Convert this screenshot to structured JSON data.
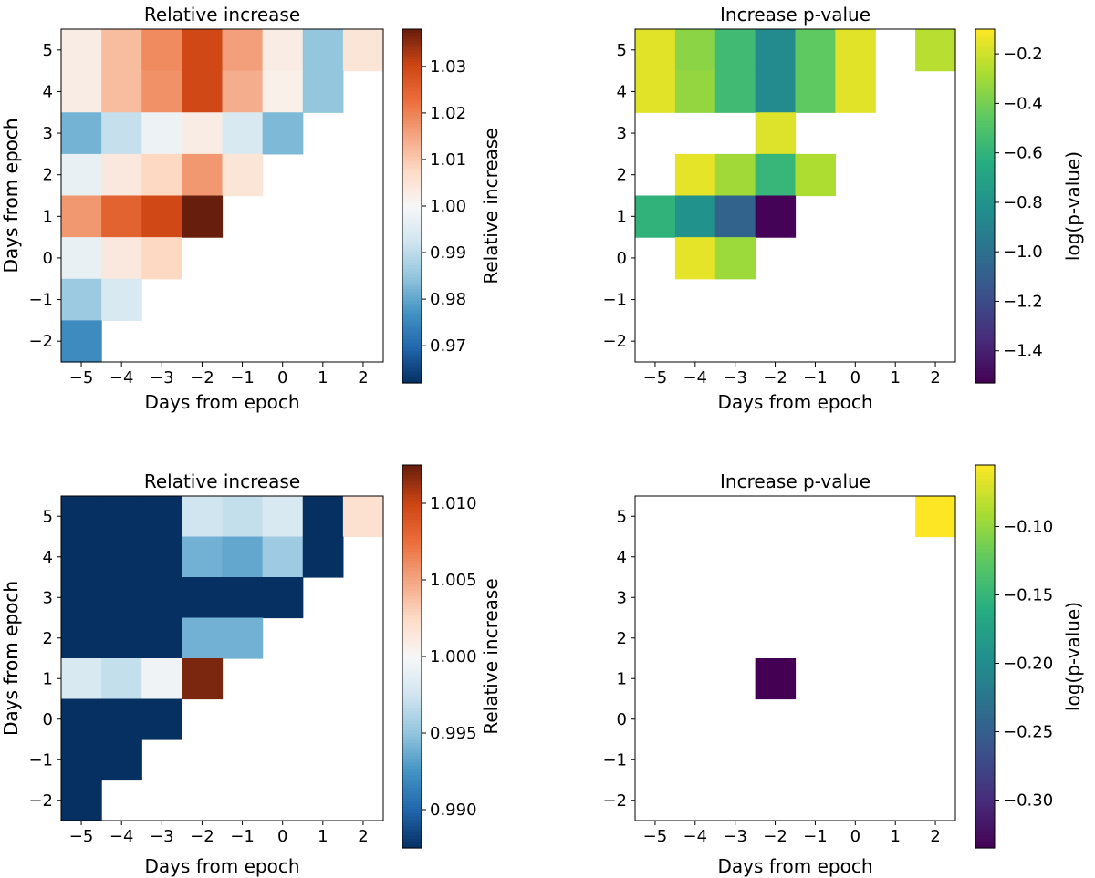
{
  "figure": {
    "description_none": ""
  },
  "chart_data": [
    {
      "type": "heatmap",
      "title": "Relative increase",
      "xlabel": "Days from epoch",
      "ylabel": "Days from epoch",
      "x_categories": [
        -5,
        -4,
        -3,
        -2,
        -1,
        0,
        1,
        2
      ],
      "y_categories": [
        5,
        4,
        3,
        2,
        1,
        0,
        -1,
        -2
      ],
      "values": [
        [
          1.003,
          1.012,
          1.019,
          1.03,
          1.016,
          1.003,
          0.985,
          1.005
        ],
        [
          1.003,
          1.012,
          1.018,
          1.03,
          1.014,
          1.002,
          0.985,
          null
        ],
        [
          0.982,
          0.991,
          0.998,
          1.003,
          0.994,
          0.983,
          null,
          null
        ],
        [
          0.997,
          1.004,
          1.008,
          1.017,
          1.005,
          null,
          null,
          null
        ],
        [
          1.017,
          1.025,
          1.03,
          1.038,
          null,
          null,
          null,
          null
        ],
        [
          0.997,
          1.004,
          1.008,
          null,
          null,
          null,
          null,
          null
        ],
        [
          0.986,
          0.994,
          null,
          null,
          null,
          null,
          null,
          null
        ],
        [
          0.976,
          null,
          null,
          null,
          null,
          null,
          null,
          null
        ]
      ],
      "colorbar": {
        "label": "Relative increase",
        "colormap": "RdBu_r",
        "range": [
          0.962,
          1.038
        ],
        "ticks": [
          0.97,
          0.98,
          0.99,
          1.0,
          1.01,
          1.02,
          1.03
        ],
        "tick_labels": [
          "0.97",
          "0.98",
          "0.99",
          "1.00",
          "1.01",
          "1.02",
          "1.03"
        ]
      }
    },
    {
      "type": "heatmap",
      "title": "Increase p-value",
      "xlabel": "Days from epoch",
      "ylabel": "Days from epoch",
      "x_categories": [
        -5,
        -4,
        -3,
        -2,
        -1,
        0,
        1,
        2
      ],
      "y_categories": [
        5,
        4,
        3,
        2,
        1,
        0,
        -1,
        -2
      ],
      "values": [
        [
          -0.16,
          -0.35,
          -0.55,
          -0.85,
          -0.45,
          -0.16,
          null,
          -0.25
        ],
        [
          -0.16,
          -0.33,
          -0.55,
          -0.85,
          -0.45,
          -0.16,
          null,
          null
        ],
        [
          null,
          null,
          null,
          -0.17,
          null,
          null,
          null,
          null
        ],
        [
          null,
          -0.15,
          -0.3,
          -0.58,
          -0.27,
          null,
          null,
          null
        ],
        [
          -0.6,
          -0.8,
          -1.07,
          -1.52,
          null,
          null,
          null,
          null
        ],
        [
          null,
          -0.15,
          -0.31,
          null,
          null,
          null,
          null,
          null
        ],
        [
          null,
          null,
          null,
          null,
          null,
          null,
          null,
          null
        ],
        [
          null,
          null,
          null,
          null,
          null,
          null,
          null,
          null
        ]
      ],
      "colorbar": {
        "label": "log(p-value)",
        "colormap": "viridis",
        "range": [
          -1.53,
          -0.1
        ],
        "ticks": [
          -1.4,
          -1.2,
          -1.0,
          -0.8,
          -0.6,
          -0.4,
          -0.2
        ],
        "tick_labels": [
          "−1.4",
          "−1.2",
          "−1.0",
          "−0.8",
          "−0.6",
          "−0.4",
          "−0.2"
        ]
      }
    },
    {
      "type": "heatmap",
      "title": "Relative increase",
      "xlabel": "Days from epoch",
      "ylabel": "Days from epoch",
      "x_categories": [
        -5,
        -4,
        -3,
        -2,
        -1,
        0,
        1,
        2
      ],
      "y_categories": [
        5,
        4,
        3,
        2,
        1,
        0,
        -1,
        -2
      ],
      "values": [
        [
          0.9875,
          0.9875,
          0.9875,
          0.9975,
          0.997,
          0.998,
          0.9875,
          1.002
        ],
        [
          0.9875,
          0.9875,
          0.9875,
          0.994,
          0.9935,
          0.9955,
          0.9875,
          null
        ],
        [
          0.9875,
          0.9875,
          0.9875,
          0.9875,
          0.9875,
          0.9875,
          null,
          null
        ],
        [
          0.9875,
          0.9875,
          0.9875,
          0.994,
          0.994,
          null,
          null,
          null
        ],
        [
          0.998,
          0.997,
          0.9995,
          1.012,
          null,
          null,
          null,
          null
        ],
        [
          0.9875,
          0.9875,
          0.9875,
          null,
          null,
          null,
          null,
          null
        ],
        [
          0.9875,
          0.9875,
          null,
          null,
          null,
          null,
          null,
          null
        ],
        [
          0.9875,
          null,
          null,
          null,
          null,
          null,
          null,
          null
        ]
      ],
      "colorbar": {
        "label": "Relative increase",
        "colormap": "RdBu_r",
        "range": [
          0.9875,
          1.0125
        ],
        "ticks": [
          0.99,
          0.995,
          1.0,
          1.005,
          1.01
        ],
        "tick_labels": [
          "0.990",
          "0.995",
          "1.000",
          "1.005",
          "1.010"
        ]
      }
    },
    {
      "type": "heatmap",
      "title": "Increase p-value",
      "xlabel": "Days from epoch",
      "ylabel": "Days from epoch",
      "x_categories": [
        -5,
        -4,
        -3,
        -2,
        -1,
        0,
        1,
        2
      ],
      "y_categories": [
        5,
        4,
        3,
        2,
        1,
        0,
        -1,
        -2
      ],
      "values": [
        [
          null,
          null,
          null,
          null,
          null,
          null,
          null,
          -0.055
        ],
        [
          null,
          null,
          null,
          null,
          null,
          null,
          null,
          null
        ],
        [
          null,
          null,
          null,
          null,
          null,
          null,
          null,
          null
        ],
        [
          null,
          null,
          null,
          null,
          null,
          null,
          null,
          null
        ],
        [
          null,
          null,
          null,
          -0.335,
          null,
          null,
          null,
          null
        ],
        [
          null,
          null,
          null,
          null,
          null,
          null,
          null,
          null
        ],
        [
          null,
          null,
          null,
          null,
          null,
          null,
          null,
          null
        ],
        [
          null,
          null,
          null,
          null,
          null,
          null,
          null,
          null
        ]
      ],
      "colorbar": {
        "label": "log(p-value)",
        "colormap": "viridis",
        "range": [
          -0.335,
          -0.055
        ],
        "ticks": [
          -0.3,
          -0.25,
          -0.2,
          -0.15,
          -0.1
        ],
        "tick_labels": [
          "−0.30",
          "−0.25",
          "−0.20",
          "−0.15",
          "−0.10"
        ]
      }
    }
  ]
}
